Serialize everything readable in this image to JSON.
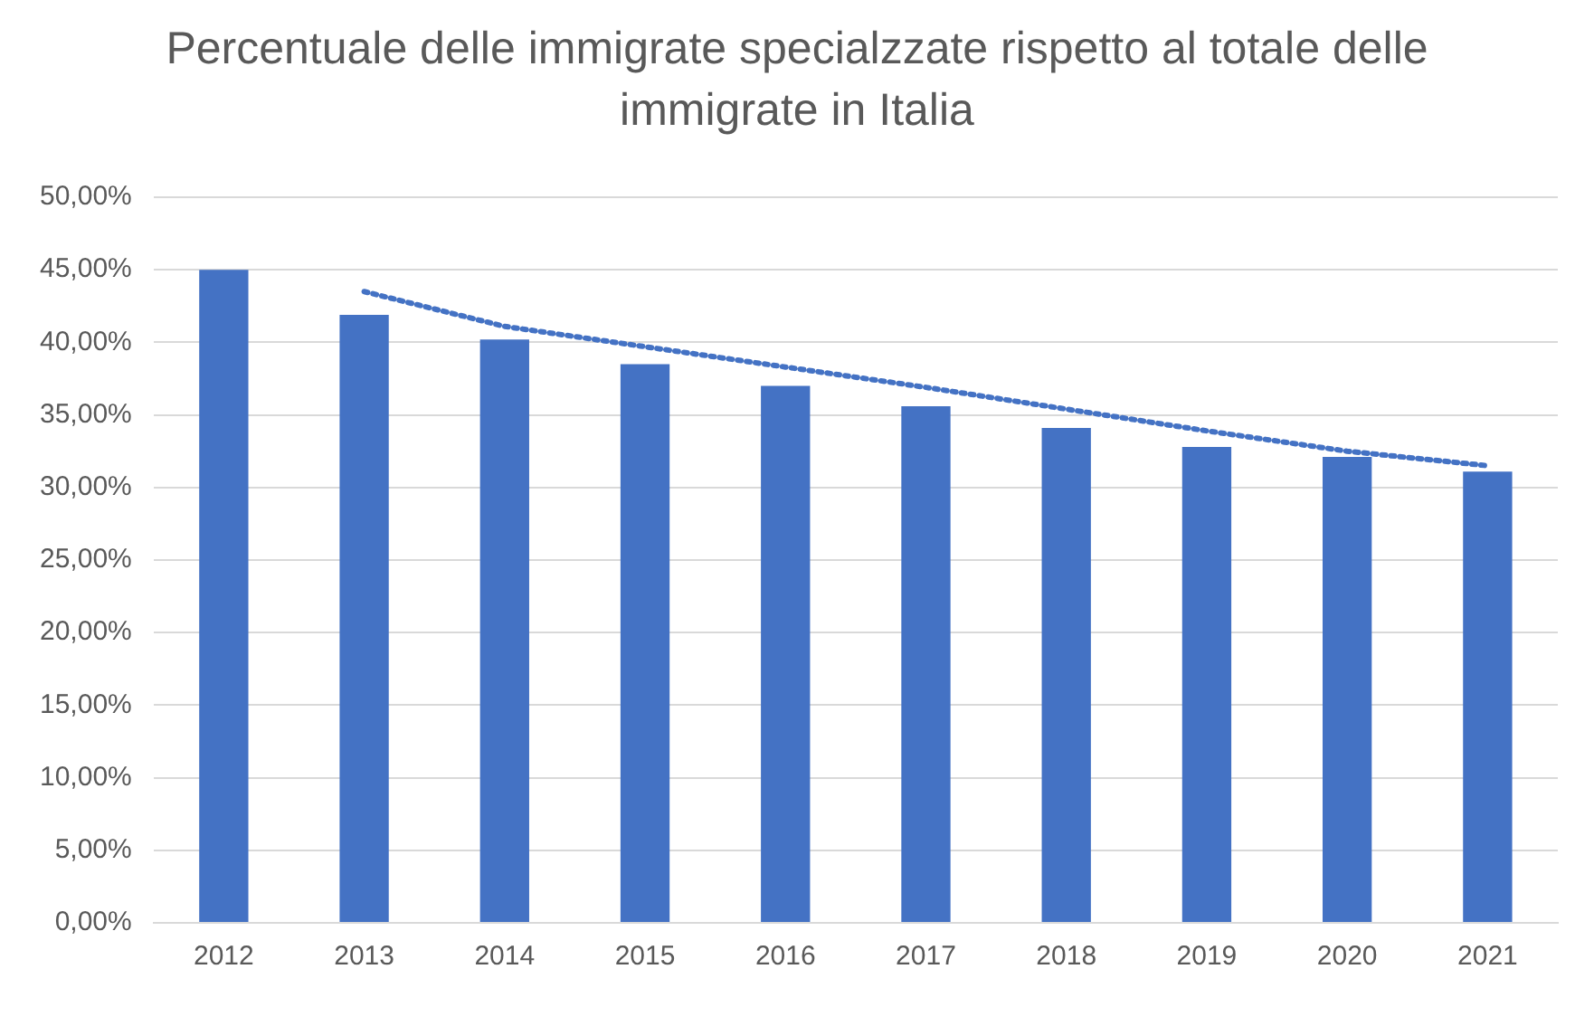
{
  "chart_data": {
    "type": "bar",
    "title": "Percentuale delle immigrate specialzzate rispetto al totale delle immigrate in Italia",
    "categories": [
      "2012",
      "2013",
      "2014",
      "2015",
      "2016",
      "2017",
      "2018",
      "2019",
      "2020",
      "2021"
    ],
    "series": [
      {
        "color": "#4472c4",
        "values": [
          45.0,
          41.9,
          40.2,
          38.5,
          37.0,
          35.6,
          34.1,
          32.8,
          32.1,
          31.1
        ]
      },
      {
        "type": "line",
        "color": "#4472c4",
        "line_style": "dotted",
        "marker": "none",
        "values": [
          null,
          43.5,
          41.1,
          39.7,
          38.3,
          36.9,
          35.4,
          33.9,
          32.5,
          31.5
        ]
      }
    ],
    "ylim": [
      0,
      50
    ],
    "yticks": [
      {
        "value": 0,
        "label": "0,00%"
      },
      {
        "value": 5,
        "label": "5,00%"
      },
      {
        "value": 10,
        "label": "10,00%"
      },
      {
        "value": 15,
        "label": "15,00%"
      },
      {
        "value": 20,
        "label": "20,00%"
      },
      {
        "value": 25,
        "label": "25,00%"
      },
      {
        "value": 30,
        "label": "30,00%"
      },
      {
        "value": 35,
        "label": "35,00%"
      },
      {
        "value": 40,
        "label": "40,00%"
      },
      {
        "value": 45,
        "label": "45,00%"
      },
      {
        "value": 50,
        "label": "50,00%"
      }
    ],
    "grid": "y",
    "legend": false
  }
}
